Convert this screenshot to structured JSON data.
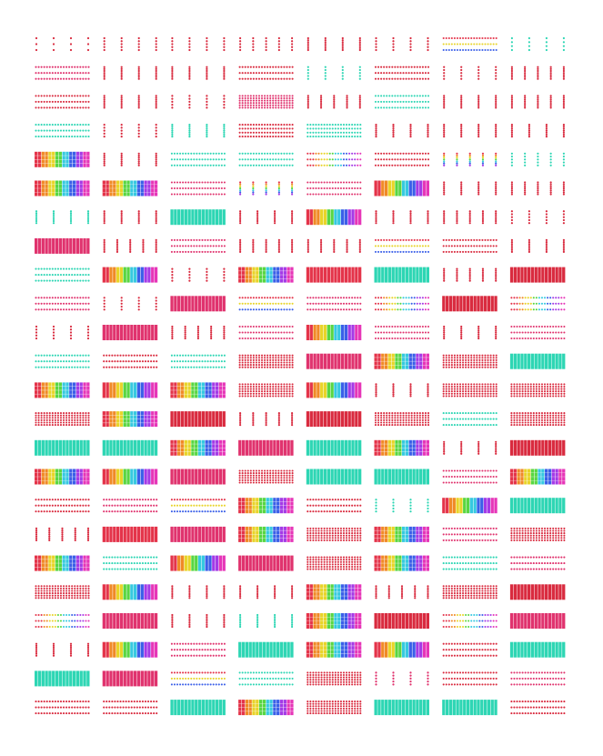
{
  "sheet": {
    "rows": 24,
    "cols": 8,
    "tiles": [
      [
        "ms1r",
        "ms3r",
        "ms3r",
        "mr3r",
        "ms5r",
        "ms3r",
        "ds3m",
        "ms2t"
      ],
      [
        "ds3m",
        "ms5r",
        "ms5r",
        "ds3r",
        "ms3t",
        "ds3r",
        "ms3r",
        "mr5r"
      ],
      [
        "ds1r",
        "ms5r",
        "ms3r",
        "dr5m",
        "mr5r",
        "ds1t",
        "ms5r",
        "mr5r"
      ],
      [
        "ds3t",
        "ms3r",
        "ms5t",
        "dr3r",
        "dd3t",
        "ms5r",
        "ms5r",
        "ms5r"
      ],
      [
        "gr5m",
        "ms5r",
        "ds5t",
        "ds5t",
        "ds3m",
        "ds5r",
        "mr5m",
        "mr3t"
      ],
      [
        "gr5r",
        "gr5r",
        "ds1m",
        "mr5m",
        "ds3m",
        "gd5r",
        "ms5r",
        "mr5r"
      ],
      [
        "ms5t",
        "ms5r",
        "sd5t",
        "ms5r",
        "sd3m",
        "ms5r",
        "mr5r",
        "ms3r"
      ],
      [
        "sd5m",
        "mr5r",
        "ds3m",
        "mr5r",
        "mr5r",
        "ds5m",
        "ds1r",
        "ms5r"
      ],
      [
        "ds5t",
        "gd5r",
        "ms3r",
        "gr5r",
        "sd5m",
        "sd5t",
        "mr5r",
        "sd5r"
      ],
      [
        "ds5m",
        "ms3r",
        "sd5m",
        "ds5m",
        "ds3m",
        "ds5m",
        "sd3r",
        "ds3m"
      ],
      [
        "ms3r",
        "sd1m",
        "mr5r",
        "ds3m",
        "gd5r",
        "ds5m",
        "ms5r",
        "ds5m"
      ],
      [
        "ds5t",
        "ds5r",
        "ds5t",
        "dr5r",
        "sd5m",
        "gr5r",
        "dr5r",
        "sd5t"
      ],
      [
        "gr5r",
        "gd5r",
        "gr5r",
        "dr5r",
        "sd5m",
        "ms5r",
        "dr5r",
        "dr5r"
      ],
      [
        "dr5r",
        "gr5r",
        "sd5r",
        "mr5r",
        "sd5r",
        "dr5r",
        "ds5t",
        "dr5r"
      ],
      [
        "sd5t",
        "sd5t",
        "gr5r",
        "sd5m",
        "sd5t",
        "gr5r",
        "ms5r",
        "sd5r"
      ],
      [
        "gr5r",
        "gd5r",
        "sd3m",
        "dr5r",
        "sd5t",
        "sd5t",
        "ds5m",
        "gr5r"
      ],
      [
        "ds5r",
        "ds3m",
        "ds3m",
        "gr5r",
        "ds3r",
        "ms3t",
        "sd5m",
        "sd5t"
      ],
      [
        "mr5r",
        "sd5m",
        "sd3m",
        "gr5r",
        "dr5r",
        "gr5r",
        "ds3m",
        "dr5r"
      ],
      [
        "gr5r",
        "ds5t",
        "sd5m",
        "sd5m",
        "dr5r",
        "gr5r",
        "ds5t",
        "ds5m"
      ],
      [
        "dr5r",
        "sd5m",
        "ms5r",
        "ms5r",
        "gr5r",
        "mr5r",
        "dr5r",
        "sd5r"
      ],
      [
        "ds5m",
        "sd5m",
        "ms5r",
        "ms5t",
        "gr5r",
        "sd5r",
        "ds3m",
        "sd5m"
      ],
      [
        "ms5r",
        "sd5m",
        "ds5m",
        "sd5t",
        "gr5r",
        "sd5m",
        "ds5r",
        "sd5t"
      ],
      [
        "sd5t",
        "sd5m",
        "ds5m",
        "ds3t",
        "dr5r",
        "ms3m",
        "ds5r",
        "ds3m"
      ],
      [
        "ds5r",
        "ds5r",
        "sd5t",
        "gr5r",
        "dr5r",
        "sd5t",
        "sd5t",
        "ds5r"
      ]
    ],
    "colors": {
      "magenta": "#e0336e",
      "pink": "#e8458f",
      "crimson": "#d92b3f",
      "teal": "#2ed6b4",
      "purple": "#c04ad6",
      "rainbow": [
        "#e4344a",
        "#f08a26",
        "#e8d428",
        "#58d642",
        "#36c9e0",
        "#3a5fe8",
        "#a43ae6",
        "#e636b8"
      ]
    }
  }
}
